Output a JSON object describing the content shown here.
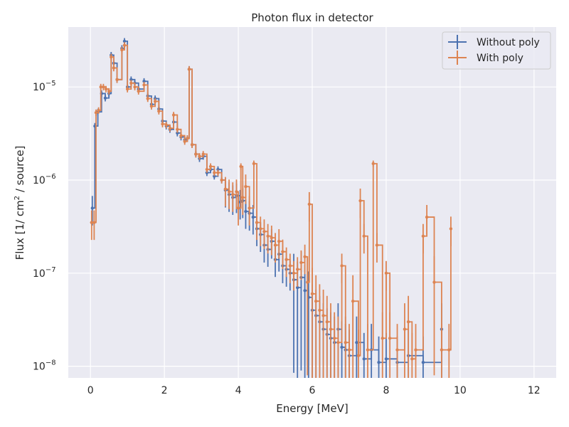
{
  "chart_data": {
    "type": "line",
    "title": "Photon flux in detector",
    "xlabel": "Energy [MeV]",
    "ylabel": "Flux [1/ cm² / source]",
    "ylabel_parts": {
      "pre": "Flux [1/ cm",
      "sup": "2",
      "post": " / source]"
    },
    "xlim": [
      -0.6,
      12.6
    ],
    "ylim": [
      7.5e-09,
      4.4e-05
    ],
    "yscale": "log",
    "grid": true,
    "legend_position": "top-right",
    "x_ticks": [
      {
        "value": 0,
        "label": "0"
      },
      {
        "value": 2,
        "label": "2"
      },
      {
        "value": 4,
        "label": "4"
      },
      {
        "value": 6,
        "label": "6"
      },
      {
        "value": 8,
        "label": "8"
      },
      {
        "value": 10,
        "label": "10"
      },
      {
        "value": 12,
        "label": "12"
      }
    ],
    "y_ticks": [
      {
        "value": 1e-08,
        "base": "10",
        "exp": "−8"
      },
      {
        "value": 1e-07,
        "base": "10",
        "exp": "−7"
      },
      {
        "value": 1e-06,
        "base": "10",
        "exp": "−6"
      },
      {
        "value": 1e-05,
        "base": "10",
        "exp": "−5"
      }
    ],
    "series": [
      {
        "name": "Without poly",
        "color": "#4c72b0",
        "points": [
          [
            0.05,
            5e-07
          ],
          [
            0.12,
            3.8e-06
          ],
          [
            0.2,
            5.4e-06
          ],
          [
            0.3,
            8.5e-06
          ],
          [
            0.4,
            7.6e-06
          ],
          [
            0.5,
            8.5e-06
          ],
          [
            0.56,
            2.2e-05
          ],
          [
            0.63,
            1.8e-05
          ],
          [
            0.72,
            1.2e-05
          ],
          [
            0.85,
            2.6e-05
          ],
          [
            0.92,
            3.1e-05
          ],
          [
            1.0,
            1e-05
          ],
          [
            1.1,
            1.2e-05
          ],
          [
            1.2,
            1.1e-05
          ],
          [
            1.3,
            9.5e-06
          ],
          [
            1.45,
            1.15e-05
          ],
          [
            1.55,
            8e-06
          ],
          [
            1.65,
            6.5e-06
          ],
          [
            1.75,
            7.5e-06
          ],
          [
            1.85,
            5.8e-06
          ],
          [
            1.95,
            4.3e-06
          ],
          [
            2.05,
            3.8e-06
          ],
          [
            2.15,
            3.5e-06
          ],
          [
            2.25,
            4.2e-06
          ],
          [
            2.35,
            3.2e-06
          ],
          [
            2.45,
            2.9e-06
          ],
          [
            2.55,
            2.7e-06
          ],
          [
            2.62,
            2.8e-06
          ],
          [
            2.67,
            1.55e-05
          ],
          [
            2.75,
            2.4e-06
          ],
          [
            2.85,
            1.9e-06
          ],
          [
            2.95,
            1.7e-06
          ],
          [
            3.05,
            1.8e-06
          ],
          [
            3.15,
            1.2e-06
          ],
          [
            3.25,
            1.3e-06
          ],
          [
            3.35,
            1.1e-06
          ],
          [
            3.45,
            1.3e-06
          ],
          [
            3.55,
            1e-06
          ],
          [
            3.65,
            7.8e-07
          ],
          [
            3.75,
            7e-07
          ],
          [
            3.85,
            6.5e-07
          ],
          [
            3.95,
            6.8e-07
          ],
          [
            4.05,
            5.8e-07
          ],
          [
            4.12,
            6e-07
          ],
          [
            4.2,
            4.6e-07
          ],
          [
            4.3,
            4.4e-07
          ],
          [
            4.4,
            4e-07
          ],
          [
            4.5,
            3e-07
          ],
          [
            4.6,
            2.6e-07
          ],
          [
            4.7,
            2e-07
          ],
          [
            4.8,
            1.8e-07
          ],
          [
            4.9,
            2.2e-07
          ],
          [
            5.0,
            1.4e-07
          ],
          [
            5.1,
            1.6e-07
          ],
          [
            5.2,
            1.2e-07
          ],
          [
            5.3,
            1.1e-07
          ],
          [
            5.4,
            1e-07
          ],
          [
            5.5,
            8.5e-08
          ],
          [
            5.6,
            7e-08
          ],
          [
            5.7,
            9e-08
          ],
          [
            5.8,
            6.5e-08
          ],
          [
            5.9,
            5.5e-08
          ],
          [
            6.0,
            4e-08
          ],
          [
            6.1,
            3.5e-08
          ],
          [
            6.2,
            3e-08
          ],
          [
            6.3,
            2.5e-08
          ],
          [
            6.4,
            2.2e-08
          ],
          [
            6.5,
            2e-08
          ],
          [
            6.6,
            1.8e-08
          ],
          [
            6.7,
            2.5e-08
          ],
          [
            6.8,
            1.6e-08
          ],
          [
            6.9,
            1.5e-08
          ],
          [
            7.0,
            1.3e-08
          ],
          [
            7.2,
            1.8e-08
          ],
          [
            7.4,
            1.2e-08
          ],
          [
            7.6,
            1.5e-08
          ],
          [
            7.8,
            1.1e-08
          ],
          [
            8.0,
            1.2e-08
          ],
          [
            8.3,
            1.1e-08
          ],
          [
            8.6,
            1.3e-08
          ],
          [
            9.0,
            1.1e-08
          ],
          [
            9.5,
            2.5e-08
          ]
        ]
      },
      {
        "name": "With poly",
        "color": "#dd8452",
        "points": [
          [
            0.03,
            3.5e-07
          ],
          [
            0.1,
            3.5e-07
          ],
          [
            0.15,
            5.3e-06
          ],
          [
            0.22,
            5.6e-06
          ],
          [
            0.28,
            1e-05
          ],
          [
            0.35,
            1e-05
          ],
          [
            0.42,
            9.5e-06
          ],
          [
            0.5,
            9e-06
          ],
          [
            0.56,
            2.1e-05
          ],
          [
            0.63,
            1.6e-05
          ],
          [
            0.72,
            1.2e-05
          ],
          [
            0.85,
            2.5e-05
          ],
          [
            0.92,
            2.8e-05
          ],
          [
            1.0,
            9.5e-06
          ],
          [
            1.1,
            1.1e-05
          ],
          [
            1.2,
            1e-05
          ],
          [
            1.3,
            9e-06
          ],
          [
            1.45,
            1.05e-05
          ],
          [
            1.55,
            7.5e-06
          ],
          [
            1.65,
            6.2e-06
          ],
          [
            1.75,
            7e-06
          ],
          [
            1.85,
            5.5e-06
          ],
          [
            1.95,
            4e-06
          ],
          [
            2.05,
            3.9e-06
          ],
          [
            2.15,
            3.6e-06
          ],
          [
            2.25,
            5e-06
          ],
          [
            2.35,
            3.5e-06
          ],
          [
            2.45,
            3e-06
          ],
          [
            2.55,
            2.6e-06
          ],
          [
            2.62,
            2.8e-06
          ],
          [
            2.67,
            1.55e-05
          ],
          [
            2.75,
            2.4e-06
          ],
          [
            2.85,
            1.9e-06
          ],
          [
            2.95,
            1.8e-06
          ],
          [
            3.05,
            1.9e-06
          ],
          [
            3.15,
            1.3e-06
          ],
          [
            3.25,
            1.4e-06
          ],
          [
            3.35,
            1.2e-06
          ],
          [
            3.45,
            1.2e-06
          ],
          [
            3.55,
            1e-06
          ],
          [
            3.65,
            8e-07
          ],
          [
            3.75,
            7.5e-07
          ],
          [
            3.85,
            7e-07
          ],
          [
            3.95,
            7.5e-07
          ],
          [
            4.0,
            5e-07
          ],
          [
            4.07,
            1.4e-06
          ],
          [
            4.12,
            6.5e-07
          ],
          [
            4.2,
            8.5e-07
          ],
          [
            4.3,
            5e-07
          ],
          [
            4.42,
            1.5e-06
          ],
          [
            4.5,
            3.5e-07
          ],
          [
            4.6,
            3e-07
          ],
          [
            4.7,
            2.8e-07
          ],
          [
            4.8,
            2.5e-07
          ],
          [
            4.9,
            2.4e-07
          ],
          [
            5.0,
            2e-07
          ],
          [
            5.1,
            2.2e-07
          ],
          [
            5.2,
            1.7e-07
          ],
          [
            5.3,
            1.4e-07
          ],
          [
            5.4,
            1.2e-07
          ],
          [
            5.5,
            1e-07
          ],
          [
            5.6,
            1.1e-07
          ],
          [
            5.7,
            1.3e-07
          ],
          [
            5.8,
            1.5e-07
          ],
          [
            5.87,
            8e-08
          ],
          [
            5.92,
            5.5e-07
          ],
          [
            6.0,
            6e-08
          ],
          [
            6.1,
            5e-08
          ],
          [
            6.2,
            4e-08
          ],
          [
            6.3,
            3.5e-08
          ],
          [
            6.4,
            3e-08
          ],
          [
            6.5,
            2.5e-08
          ],
          [
            6.6,
            2e-08
          ],
          [
            6.7,
            1.8e-08
          ],
          [
            6.8,
            1.2e-07
          ],
          [
            6.9,
            1.8e-08
          ],
          [
            7.0,
            1.5e-08
          ],
          [
            7.1,
            5e-08
          ],
          [
            7.25,
            1.3e-08
          ],
          [
            7.3,
            6e-07
          ],
          [
            7.4,
            2.5e-07
          ],
          [
            7.5,
            1.5e-08
          ],
          [
            7.65,
            1.5e-06
          ],
          [
            7.75,
            2e-07
          ],
          [
            7.9,
            2e-08
          ],
          [
            8.0,
            1e-07
          ],
          [
            8.1,
            2e-08
          ],
          [
            8.3,
            1.5e-08
          ],
          [
            8.5,
            2.5e-08
          ],
          [
            8.6,
            3e-08
          ],
          [
            8.7,
            1.2e-08
          ],
          [
            8.8,
            1.5e-08
          ],
          [
            9.0,
            2.5e-07
          ],
          [
            9.1,
            4e-07
          ],
          [
            9.3,
            8e-08
          ],
          [
            9.5,
            1.5e-08
          ],
          [
            9.7,
            1.5e-08
          ],
          [
            9.75,
            3e-07
          ]
        ]
      }
    ]
  }
}
